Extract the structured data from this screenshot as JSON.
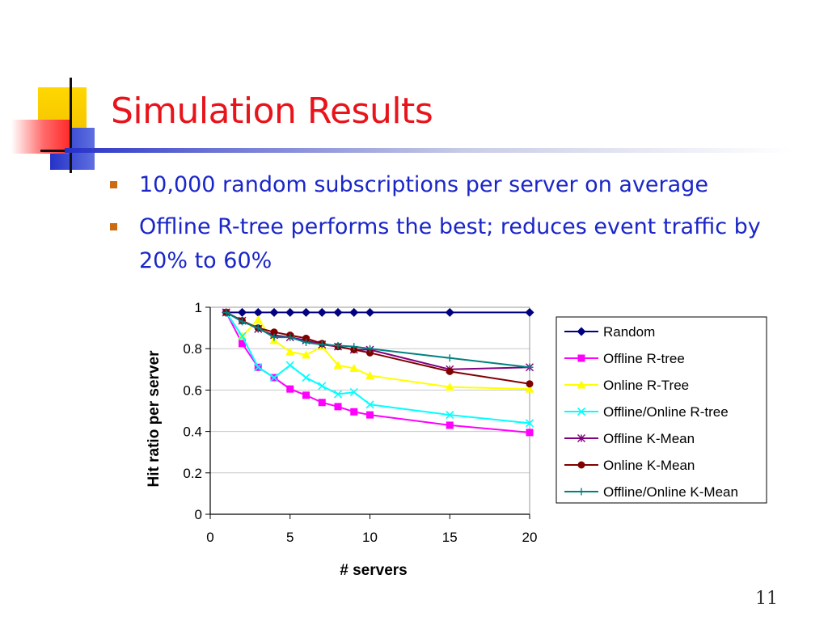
{
  "slide": {
    "title": "Simulation Results",
    "bullets": [
      "10,000 random subscriptions per server on average",
      "Offline R-tree performs the best; reduces event traffic by 20% to 60%"
    ],
    "page_number": "11"
  },
  "colors": {
    "title": "#e8141b",
    "bullet_text": "#1a26c8",
    "bullet_marker": "#cc6b12"
  },
  "chart_data": {
    "type": "line",
    "xlabel": "# servers",
    "ylabel": "Hit ratio per server",
    "xlim": [
      0,
      20
    ],
    "ylim": [
      0,
      1
    ],
    "xticks": [
      "0",
      "5",
      "10",
      "15",
      "20"
    ],
    "yticks": [
      "0",
      "0.2",
      "0.4",
      "0.6",
      "0.8",
      "1"
    ],
    "grid": "horizontal",
    "legend_position": "right",
    "series": [
      {
        "name": "Random",
        "color": "#000080",
        "marker": "diamond",
        "x": [
          1,
          2,
          3,
          4,
          5,
          6,
          7,
          8,
          9,
          10,
          15,
          20
        ],
        "y": [
          0.975,
          0.975,
          0.975,
          0.975,
          0.975,
          0.975,
          0.975,
          0.975,
          0.975,
          0.975,
          0.975,
          0.975
        ]
      },
      {
        "name": "Offline R-tree",
        "color": "#ff00ff",
        "marker": "square",
        "x": [
          1,
          2,
          3,
          4,
          5,
          6,
          7,
          8,
          9,
          10,
          15,
          20
        ],
        "y": [
          0.975,
          0.825,
          0.71,
          0.66,
          0.605,
          0.575,
          0.54,
          0.52,
          0.495,
          0.48,
          0.43,
          0.395
        ]
      },
      {
        "name": "Online R-Tree",
        "color": "#ffff00",
        "marker": "triangle",
        "x": [
          1,
          2,
          3,
          4,
          5,
          6,
          7,
          8,
          9,
          10,
          15,
          20
        ],
        "y": [
          0.975,
          0.86,
          0.94,
          0.84,
          0.785,
          0.77,
          0.81,
          0.72,
          0.705,
          0.67,
          0.615,
          0.605
        ]
      },
      {
        "name": "Offline/Online R-tree",
        "color": "#00ffff",
        "marker": "x",
        "x": [
          1,
          2,
          3,
          4,
          5,
          6,
          7,
          8,
          9,
          10,
          15,
          20
        ],
        "y": [
          0.975,
          0.86,
          0.71,
          0.66,
          0.72,
          0.66,
          0.62,
          0.58,
          0.59,
          0.53,
          0.48,
          0.44
        ]
      },
      {
        "name": "Offline K-Mean",
        "color": "#800080",
        "marker": "asterisk",
        "x": [
          1,
          2,
          3,
          4,
          5,
          6,
          7,
          8,
          9,
          10,
          15,
          20
        ],
        "y": [
          0.975,
          0.935,
          0.895,
          0.865,
          0.855,
          0.84,
          0.82,
          0.81,
          0.795,
          0.795,
          0.7,
          0.71
        ]
      },
      {
        "name": "Online K-Mean",
        "color": "#800000",
        "marker": "circle",
        "x": [
          1,
          2,
          3,
          4,
          5,
          6,
          7,
          8,
          9,
          10,
          15,
          20
        ],
        "y": [
          0.975,
          0.935,
          0.9,
          0.88,
          0.865,
          0.85,
          0.825,
          0.81,
          0.795,
          0.78,
          0.69,
          0.63
        ]
      },
      {
        "name": "Offline/Online K-Mean",
        "color": "#008080",
        "marker": "plus",
        "x": [
          1,
          2,
          3,
          4,
          5,
          6,
          7,
          8,
          9,
          10,
          15,
          20
        ],
        "y": [
          0.975,
          0.93,
          0.9,
          0.855,
          0.855,
          0.83,
          0.82,
          0.815,
          0.81,
          0.8,
          0.755,
          0.71
        ]
      }
    ]
  }
}
